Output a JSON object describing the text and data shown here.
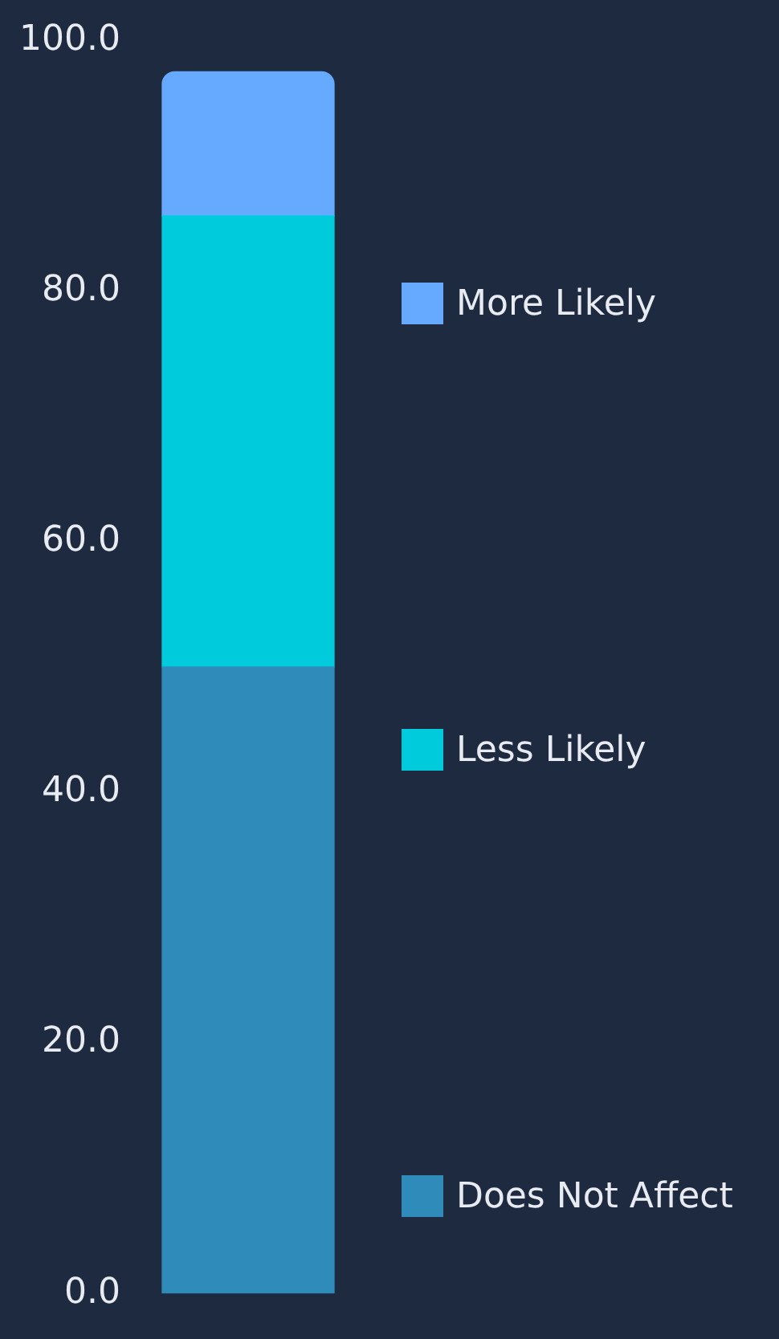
{
  "chart_data": {
    "type": "bar",
    "stacked": true,
    "categories": [
      null
    ],
    "series": [
      {
        "name": "Does Not Affect",
        "color": "#2e8bba",
        "values": [
          50
        ]
      },
      {
        "name": "Less Likely",
        "color": "#00cbdc",
        "values": [
          36
        ]
      },
      {
        "name": "More Likely",
        "color": "#66aaff",
        "values": [
          11.5
        ]
      }
    ],
    "ylim": [
      0,
      100
    ],
    "yticks": [
      {
        "value": 0,
        "label": "0.0"
      },
      {
        "value": 20,
        "label": "20.0"
      },
      {
        "value": 40,
        "label": "40.0"
      },
      {
        "value": 60,
        "label": "60.0"
      },
      {
        "value": 80,
        "label": "80.0"
      },
      {
        "value": 100,
        "label": "100.0"
      }
    ],
    "grid": false,
    "legend": "right"
  }
}
